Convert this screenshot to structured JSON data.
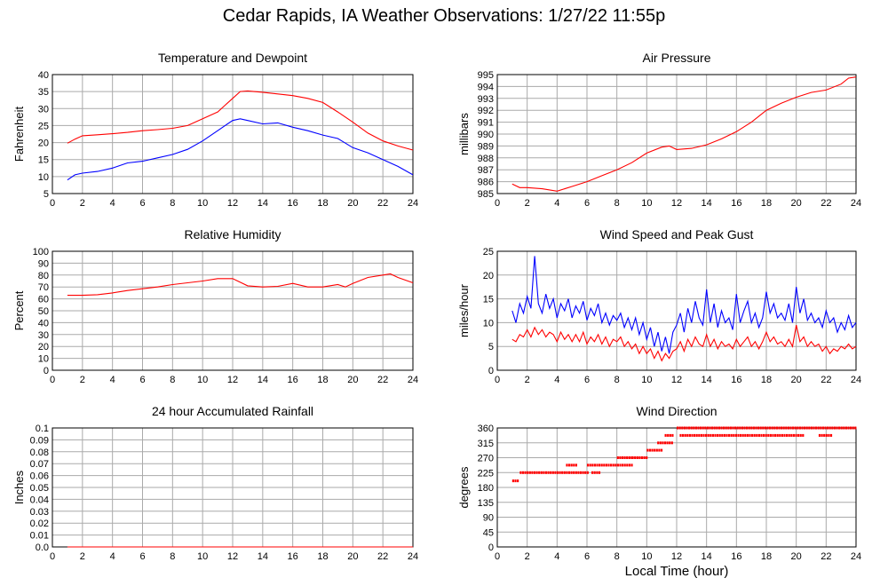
{
  "page": {
    "title": "Cedar Rapids, IA Weather Observations: 1/27/22 11:55p",
    "xlabel": "Local Time (hour)"
  },
  "colors": {
    "red": "#ff0000",
    "blue": "#0000ff",
    "grid": "#aaaaaa",
    "frame": "#000000"
  },
  "chart_data": [
    {
      "id": "temp",
      "type": "line",
      "title": "Temperature and Dewpoint",
      "ylabel": "Fahrenheit",
      "xlim": [
        0,
        24
      ],
      "ylim": [
        5,
        40
      ],
      "xticks": [
        0,
        2,
        4,
        6,
        8,
        10,
        12,
        14,
        16,
        18,
        20,
        22,
        24
      ],
      "yticks": [
        5,
        10,
        15,
        20,
        25,
        30,
        35,
        40
      ],
      "series": [
        {
          "color": "#ff0000",
          "x": [
            1,
            1.5,
            2,
            3,
            4,
            5,
            6,
            7,
            8,
            9,
            10,
            11,
            11.5,
            12,
            12.5,
            13,
            14,
            15,
            16,
            17,
            18,
            19,
            20,
            21,
            22,
            23,
            24
          ],
          "y": [
            19.8,
            21,
            22,
            22.3,
            22.6,
            23,
            23.5,
            23.8,
            24.2,
            25,
            27,
            29,
            31,
            33,
            35,
            35.2,
            34.8,
            34.3,
            33.8,
            33,
            31.8,
            29,
            26,
            22.8,
            20.5,
            19,
            17.8
          ]
        },
        {
          "color": "#0000ff",
          "x": [
            1,
            1.5,
            2,
            3,
            4,
            5,
            6,
            7,
            8,
            9,
            10,
            11,
            11.5,
            12,
            12.5,
            13,
            14,
            15,
            16,
            17,
            18,
            19,
            20,
            21,
            22,
            23,
            24
          ],
          "y": [
            9,
            10.5,
            11,
            11.5,
            12.5,
            14,
            14.5,
            15.5,
            16.5,
            18,
            20.5,
            23.5,
            25,
            26.5,
            27,
            26.5,
            25.5,
            25.8,
            24.5,
            23.5,
            22.2,
            21.2,
            18.5,
            17,
            15,
            13,
            10.5
          ]
        }
      ]
    },
    {
      "id": "pressure",
      "type": "line",
      "title": "Air Pressure",
      "ylabel": "millibars",
      "xlim": [
        0,
        24
      ],
      "ylim": [
        985,
        995
      ],
      "xticks": [
        0,
        2,
        4,
        6,
        8,
        10,
        12,
        14,
        16,
        18,
        20,
        22,
        24
      ],
      "yticks": [
        985,
        986,
        987,
        988,
        989,
        990,
        991,
        992,
        993,
        994,
        995
      ],
      "series": [
        {
          "color": "#ff0000",
          "x": [
            1,
            1.5,
            2,
            3,
            4,
            5,
            6,
            7,
            8,
            9,
            10,
            11,
            11.5,
            12,
            13,
            14,
            15,
            16,
            17,
            18,
            19,
            20,
            21,
            22,
            23,
            23.5,
            24
          ],
          "y": [
            985.8,
            985.5,
            985.5,
            985.4,
            985.2,
            985.6,
            986.0,
            986.5,
            987.0,
            987.6,
            988.4,
            988.9,
            989.0,
            988.7,
            988.8,
            989.1,
            989.6,
            990.2,
            991.0,
            992.0,
            992.6,
            993.1,
            993.5,
            993.7,
            994.2,
            994.7,
            994.8
          ]
        }
      ]
    },
    {
      "id": "rh",
      "type": "line",
      "title": "Relative Humidity",
      "ylabel": "Percent",
      "xlim": [
        0,
        24
      ],
      "ylim": [
        0,
        100
      ],
      "xticks": [
        0,
        2,
        4,
        6,
        8,
        10,
        12,
        14,
        16,
        18,
        20,
        22,
        24
      ],
      "yticks": [
        0,
        10,
        20,
        30,
        40,
        50,
        60,
        70,
        80,
        90,
        100
      ],
      "series": [
        {
          "color": "#ff0000",
          "x": [
            1,
            2,
            3,
            4,
            5,
            6,
            7,
            8,
            9,
            10,
            11,
            12,
            13,
            14,
            15,
            16,
            17,
            18,
            19,
            19.5,
            20,
            21,
            22,
            22.5,
            23,
            24
          ],
          "y": [
            63,
            63,
            63.5,
            65,
            67,
            68.5,
            70,
            72,
            73.5,
            75,
            77,
            77,
            71,
            70,
            70.5,
            73,
            70,
            70,
            72,
            70,
            73,
            78,
            80,
            81,
            78,
            73.5
          ]
        }
      ]
    },
    {
      "id": "wind",
      "type": "line",
      "title": "Wind Speed and Peak Gust",
      "ylabel": "miles/hour",
      "xlim": [
        0,
        24
      ],
      "ylim": [
        0,
        25
      ],
      "xticks": [
        0,
        2,
        4,
        6,
        8,
        10,
        12,
        14,
        16,
        18,
        20,
        22,
        24
      ],
      "yticks": [
        0,
        5,
        10,
        15,
        20,
        25
      ],
      "series": [
        {
          "color": "#0000ff",
          "x": [
            1,
            1.25,
            1.5,
            1.75,
            2,
            2.25,
            2.5,
            2.75,
            3,
            3.25,
            3.5,
            3.75,
            4,
            4.25,
            4.5,
            4.75,
            5,
            5.25,
            5.5,
            5.75,
            6,
            6.25,
            6.5,
            6.75,
            7,
            7.25,
            7.5,
            7.75,
            8,
            8.25,
            8.5,
            8.75,
            9,
            9.25,
            9.5,
            9.75,
            10,
            10.25,
            10.5,
            10.75,
            11,
            11.25,
            11.5,
            11.75,
            12,
            12.25,
            12.5,
            12.75,
            13,
            13.25,
            13.5,
            13.75,
            14,
            14.25,
            14.5,
            14.75,
            15,
            15.25,
            15.5,
            15.75,
            16,
            16.25,
            16.5,
            16.75,
            17,
            17.25,
            17.5,
            17.75,
            18,
            18.25,
            18.5,
            18.75,
            19,
            19.25,
            19.5,
            19.75,
            20,
            20.25,
            20.5,
            20.75,
            21,
            21.25,
            21.5,
            21.75,
            22,
            22.25,
            22.5,
            22.75,
            23,
            23.25,
            23.5,
            23.75,
            24
          ],
          "y": [
            12.5,
            10,
            14,
            12,
            15.5,
            13,
            24,
            14,
            12,
            16,
            13,
            15,
            11,
            14,
            12.5,
            15,
            11,
            13.5,
            12,
            14.5,
            10.5,
            13,
            11.5,
            14,
            10,
            12,
            9.5,
            11.5,
            10.5,
            12,
            9,
            11,
            8.5,
            11,
            7.5,
            10,
            6.5,
            9,
            5,
            8,
            4,
            7,
            3.5,
            8,
            9.5,
            12,
            8,
            13,
            10,
            14.5,
            11,
            9.5,
            17,
            10,
            14,
            9,
            12.5,
            10,
            11,
            8.5,
            16,
            10,
            12.5,
            14.5,
            10,
            12,
            9,
            11,
            16.5,
            12,
            14,
            11,
            12,
            10.5,
            14,
            10,
            17.5,
            12,
            15,
            10.5,
            12,
            10,
            11,
            9,
            12.5,
            10,
            11,
            8,
            10,
            8.5,
            11.5,
            9,
            10
          ]
        },
        {
          "color": "#ff0000",
          "x": [
            1,
            1.25,
            1.5,
            1.75,
            2,
            2.25,
            2.5,
            2.75,
            3,
            3.25,
            3.5,
            3.75,
            4,
            4.25,
            4.5,
            4.75,
            5,
            5.25,
            5.5,
            5.75,
            6,
            6.25,
            6.5,
            6.75,
            7,
            7.25,
            7.5,
            7.75,
            8,
            8.25,
            8.5,
            8.75,
            9,
            9.25,
            9.5,
            9.75,
            10,
            10.25,
            10.5,
            10.75,
            11,
            11.25,
            11.5,
            11.75,
            12,
            12.25,
            12.5,
            12.75,
            13,
            13.25,
            13.5,
            13.75,
            14,
            14.25,
            14.5,
            14.75,
            15,
            15.25,
            15.5,
            15.75,
            16,
            16.25,
            16.5,
            16.75,
            17,
            17.25,
            17.5,
            17.75,
            18,
            18.25,
            18.5,
            18.75,
            19,
            19.25,
            19.5,
            19.75,
            20,
            20.25,
            20.5,
            20.75,
            21,
            21.25,
            21.5,
            21.75,
            22,
            22.25,
            22.5,
            22.75,
            23,
            23.25,
            23.5,
            23.75,
            24
          ],
          "y": [
            6.5,
            6,
            7.5,
            7,
            8.5,
            7,
            9,
            7.5,
            8.5,
            7,
            8,
            7.5,
            6,
            8,
            6.5,
            7.5,
            6,
            7.5,
            6,
            8,
            5.5,
            7,
            6,
            7.5,
            5.5,
            7,
            5,
            6.5,
            6,
            7,
            5,
            6,
            4.5,
            5.5,
            3.5,
            5,
            3.5,
            4.5,
            2.5,
            4,
            2,
            3.5,
            2.5,
            4,
            4.5,
            6,
            4,
            6.5,
            5,
            7,
            5.5,
            5,
            7.5,
            5,
            6.5,
            4.5,
            6,
            5,
            5.5,
            4.5,
            6.5,
            5,
            6,
            7,
            5,
            6,
            4.5,
            6,
            8,
            6,
            7,
            5.5,
            6,
            5,
            6.5,
            5,
            9.5,
            6,
            7,
            5,
            6,
            5,
            5.5,
            4,
            5,
            3.5,
            4.5,
            4,
            5,
            4.5,
            5.5,
            4.5,
            5
          ]
        }
      ]
    },
    {
      "id": "rain",
      "type": "line",
      "title": "24 hour Accumulated Rainfall",
      "ylabel": "Inches",
      "xlim": [
        0,
        24
      ],
      "ylim": [
        0,
        0.1
      ],
      "xticks": [
        0,
        2,
        4,
        6,
        8,
        10,
        12,
        14,
        16,
        18,
        20,
        22,
        24
      ],
      "yticks": [
        0.0,
        0.01,
        0.02,
        0.03,
        0.04,
        0.05,
        0.06,
        0.07,
        0.08,
        0.09,
        0.1
      ],
      "ytick_labels": [
        "0.0",
        "0.01",
        "0.02",
        "0.03",
        "0.04",
        "0.05",
        "0.06",
        "0.07",
        "0.08",
        "0.09",
        "0.1"
      ],
      "series": [
        {
          "color": "#ff0000",
          "x": [
            1,
            24
          ],
          "y": [
            0,
            0
          ]
        }
      ]
    },
    {
      "id": "wdir",
      "type": "scatter",
      "title": "Wind Direction",
      "ylabel": "degrees",
      "xlim": [
        0,
        24
      ],
      "ylim": [
        0,
        360
      ],
      "xticks": [
        0,
        2,
        4,
        6,
        8,
        10,
        12,
        14,
        16,
        18,
        20,
        22,
        24
      ],
      "yticks": [
        0,
        45,
        90,
        135,
        180,
        225,
        270,
        315,
        360
      ],
      "series": [
        {
          "color": "#ff0000",
          "segments": [
            {
              "x0": 1.0,
              "x1": 1.4,
              "y": 200
            },
            {
              "x0": 1.5,
              "x1": 6.0,
              "y": 225
            },
            {
              "x0": 4.6,
              "x1": 5.3,
              "y": 247.5
            },
            {
              "x0": 6.0,
              "x1": 9.0,
              "y": 247.5
            },
            {
              "x0": 6.3,
              "x1": 6.8,
              "y": 225
            },
            {
              "x0": 8.0,
              "x1": 9.0,
              "y": 270
            },
            {
              "x0": 9.0,
              "x1": 10.0,
              "y": 270
            },
            {
              "x0": 10.0,
              "x1": 11.0,
              "y": 292.5
            },
            {
              "x0": 10.7,
              "x1": 11.7,
              "y": 315
            },
            {
              "x0": 11.2,
              "x1": 11.8,
              "y": 337.5
            },
            {
              "x0": 12.0,
              "x1": 24.0,
              "y": 360
            },
            {
              "x0": 12.2,
              "x1": 20.5,
              "y": 337.5
            },
            {
              "x0": 21.5,
              "x1": 22.4,
              "y": 337.5
            }
          ]
        }
      ]
    }
  ]
}
